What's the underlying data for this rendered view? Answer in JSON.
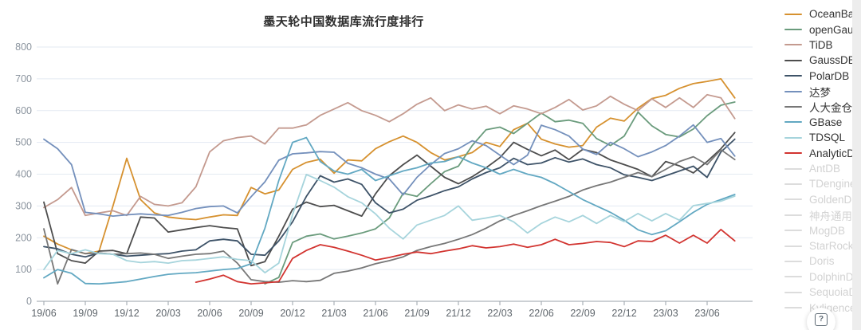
{
  "page": {
    "background": "#ffffff",
    "right_strip_color": "#ededed"
  },
  "help_button": {
    "glyph": "?"
  },
  "chart_data": {
    "type": "line",
    "title": "墨天轮中国数据库流行度排行",
    "xlabel": "",
    "ylabel": "",
    "ylim": [
      0,
      800
    ],
    "y_ticks": [
      0,
      100,
      200,
      300,
      400,
      500,
      600,
      700,
      800
    ],
    "grid": true,
    "legend_position": "right",
    "x": [
      "19/06",
      "19/07",
      "19/08",
      "19/09",
      "19/10",
      "19/11",
      "19/12",
      "20/01",
      "20/02",
      "20/03",
      "20/04",
      "20/05",
      "20/06",
      "20/07",
      "20/08",
      "20/09",
      "20/10",
      "20/11",
      "20/12",
      "21/01",
      "21/02",
      "21/03",
      "21/04",
      "21/05",
      "21/06",
      "21/07",
      "21/08",
      "21/09",
      "21/10",
      "21/11",
      "21/12",
      "22/01",
      "22/02",
      "22/03",
      "22/04",
      "22/05",
      "22/06",
      "22/07",
      "22/08",
      "22/09",
      "22/10",
      "22/11",
      "22/12",
      "23/01",
      "23/02",
      "23/03",
      "23/04",
      "23/05",
      "23/06",
      "23/07",
      "23/08"
    ],
    "x_tick_labels": [
      "19/06",
      "19/09",
      "19/12",
      "20/03",
      "20/06",
      "20/09",
      "20/12",
      "21/03",
      "21/06",
      "21/09",
      "21/12",
      "22/03",
      "22/06",
      "22/09",
      "22/12",
      "23/03",
      "23/06"
    ],
    "x_tick_every": 3,
    "axis_colors": {
      "grid_line": "#e3eaf2",
      "axis_line": "#9aa2aa",
      "y_label": "#8c959f",
      "x_label": "#5f666c",
      "title": "#2e2e2e"
    },
    "series": [
      {
        "name": "OceanBase",
        "color": "#d6912f",
        "active": true,
        "values": [
          205,
          180,
          162,
          150,
          158,
          300,
          450,
          320,
          278,
          265,
          260,
          257,
          265,
          272,
          270,
          358,
          338,
          350,
          415,
          437,
          447,
          403,
          445,
          442,
          480,
          502,
          520,
          500,
          468,
          445,
          455,
          468,
          500,
          487,
          540,
          560,
          510,
          495,
          485,
          490,
          548,
          576,
          567,
          608,
          638,
          648,
          670,
          685,
          692,
          700,
          640
        ]
      },
      {
        "name": "openGauss",
        "color": "#6a9b7c",
        "active": true,
        "values": [
          null,
          null,
          null,
          null,
          null,
          null,
          null,
          null,
          null,
          null,
          null,
          null,
          null,
          null,
          null,
          null,
          55,
          75,
          185,
          205,
          212,
          196,
          205,
          215,
          228,
          262,
          340,
          330,
          370,
          408,
          425,
          490,
          540,
          548,
          528,
          560,
          592,
          565,
          570,
          560,
          512,
          490,
          520,
          595,
          552,
          525,
          517,
          542,
          584,
          617,
          627
        ]
      },
      {
        "name": "TiDB",
        "color": "#c49a8f",
        "active": true,
        "values": [
          295,
          320,
          358,
          270,
          278,
          285,
          270,
          330,
          305,
          300,
          310,
          360,
          470,
          505,
          515,
          520,
          495,
          545,
          545,
          555,
          585,
          605,
          625,
          600,
          585,
          565,
          590,
          620,
          640,
          600,
          618,
          605,
          614,
          590,
          615,
          605,
          590,
          610,
          635,
          602,
          615,
          645,
          620,
          600,
          637,
          610,
          640,
          610,
          650,
          640,
          575
        ]
      },
      {
        "name": "GaussDB",
        "color": "#4d4d4d",
        "active": true,
        "values": [
          312,
          150,
          128,
          120,
          158,
          160,
          150,
          265,
          262,
          218,
          225,
          232,
          238,
          232,
          228,
          112,
          125,
          205,
          290,
          312,
          298,
          302,
          285,
          268,
          338,
          395,
          430,
          460,
          425,
          390,
          370,
          392,
          420,
          452,
          500,
          478,
          458,
          476,
          446,
          478,
          468,
          445,
          430,
          415,
          392,
          440,
          426,
          404,
          440,
          480,
          531
        ]
      },
      {
        "name": "PolarDB",
        "color": "#3e5368",
        "active": true,
        "values": [
          172,
          165,
          148,
          140,
          152,
          148,
          142,
          145,
          148,
          150,
          158,
          162,
          190,
          195,
          190,
          148,
          145,
          190,
          250,
          330,
          395,
          375,
          385,
          368,
          310,
          278,
          290,
          318,
          332,
          348,
          360,
          385,
          405,
          420,
          450,
          430,
          435,
          452,
          438,
          448,
          430,
          420,
          398,
          390,
          380,
          395,
          410,
          425,
          390,
          470,
          510
        ]
      },
      {
        "name": "达梦",
        "color": "#7490bc",
        "active": true,
        "values": [
          510,
          480,
          430,
          280,
          275,
          268,
          272,
          275,
          272,
          270,
          280,
          292,
          298,
          300,
          278,
          329,
          376,
          444,
          464,
          467,
          471,
          469,
          434,
          420,
          400,
          385,
          335,
          390,
          430,
          465,
          480,
          505,
          490,
          460,
          430,
          460,
          554,
          540,
          520,
          479,
          462,
          500,
          480,
          455,
          470,
          490,
          520,
          555,
          500,
          512,
          457
        ]
      },
      {
        "name": "人大金仓",
        "color": "#777777",
        "active": true,
        "values": [
          228,
          55,
          163,
          150,
          152,
          148,
          150,
          152,
          148,
          135,
          142,
          148,
          150,
          158,
          120,
          68,
          62,
          60,
          65,
          62,
          66,
          88,
          95,
          105,
          118,
          128,
          140,
          160,
          172,
          182,
          195,
          210,
          230,
          253,
          270,
          285,
          301,
          315,
          330,
          350,
          364,
          375,
          390,
          405,
          392,
          415,
          440,
          455,
          430,
          477,
          446
        ]
      },
      {
        "name": "GBase",
        "color": "#62a8c2",
        "active": true,
        "values": [
          74,
          100,
          88,
          56,
          55,
          58,
          62,
          70,
          78,
          85,
          88,
          90,
          95,
          100,
          103,
          118,
          230,
          380,
          500,
          515,
          440,
          410,
          400,
          415,
          380,
          395,
          410,
          420,
          435,
          440,
          455,
          435,
          420,
          400,
          415,
          400,
          390,
          370,
          345,
          320,
          300,
          280,
          255,
          225,
          210,
          222,
          250,
          280,
          305,
          320,
          336
        ]
      },
      {
        "name": "TDSQL",
        "color": "#a6d4dc",
        "active": true,
        "values": [
          100,
          160,
          150,
          162,
          150,
          148,
          128,
          122,
          125,
          120,
          128,
          130,
          135,
          140,
          132,
          128,
          90,
          120,
          273,
          399,
          380,
          359,
          329,
          310,
          275,
          230,
          196,
          240,
          255,
          270,
          300,
          255,
          262,
          270,
          250,
          215,
          245,
          265,
          250,
          270,
          245,
          270,
          251,
          276,
          253,
          276,
          255,
          301,
          308,
          315,
          331
        ]
      },
      {
        "name": "AnalyticDB",
        "color": "#d23430",
        "active": true,
        "values": [
          null,
          null,
          null,
          null,
          null,
          null,
          null,
          null,
          null,
          null,
          null,
          60,
          70,
          82,
          62,
          55,
          58,
          62,
          135,
          160,
          178,
          170,
          158,
          145,
          130,
          138,
          148,
          155,
          150,
          158,
          165,
          175,
          168,
          172,
          180,
          170,
          178,
          195,
          178,
          182,
          188,
          185,
          172,
          190,
          188,
          208,
          183,
          208,
          183,
          226,
          190
        ]
      },
      {
        "name": "AntDB",
        "color": "#dcdcdc",
        "active": false,
        "values": null
      },
      {
        "name": "TDengine",
        "color": "#dcdcdc",
        "active": false,
        "values": null
      },
      {
        "name": "GoldenDB",
        "color": "#dcdcdc",
        "active": false,
        "values": null
      },
      {
        "name": "神舟通用",
        "color": "#dcdcdc",
        "active": false,
        "values": null
      },
      {
        "name": "MogDB",
        "color": "#dcdcdc",
        "active": false,
        "values": null
      },
      {
        "name": "StarRocks",
        "color": "#dcdcdc",
        "active": false,
        "values": null
      },
      {
        "name": "Doris",
        "color": "#dcdcdc",
        "active": false,
        "values": null
      },
      {
        "name": "DolphinDB",
        "color": "#dcdcdc",
        "active": false,
        "values": null
      },
      {
        "name": "SequoiaDB",
        "color": "#dcdcdc",
        "active": false,
        "values": null
      },
      {
        "name": "Kyligence",
        "color": "#dcdcdc",
        "active": false,
        "values": null
      }
    ],
    "plot": {
      "x_first_tick": 55,
      "x_tick_step": 52,
      "y_zero": 378,
      "y_top": 59,
      "x_left": 46,
      "x_right": 944
    }
  }
}
